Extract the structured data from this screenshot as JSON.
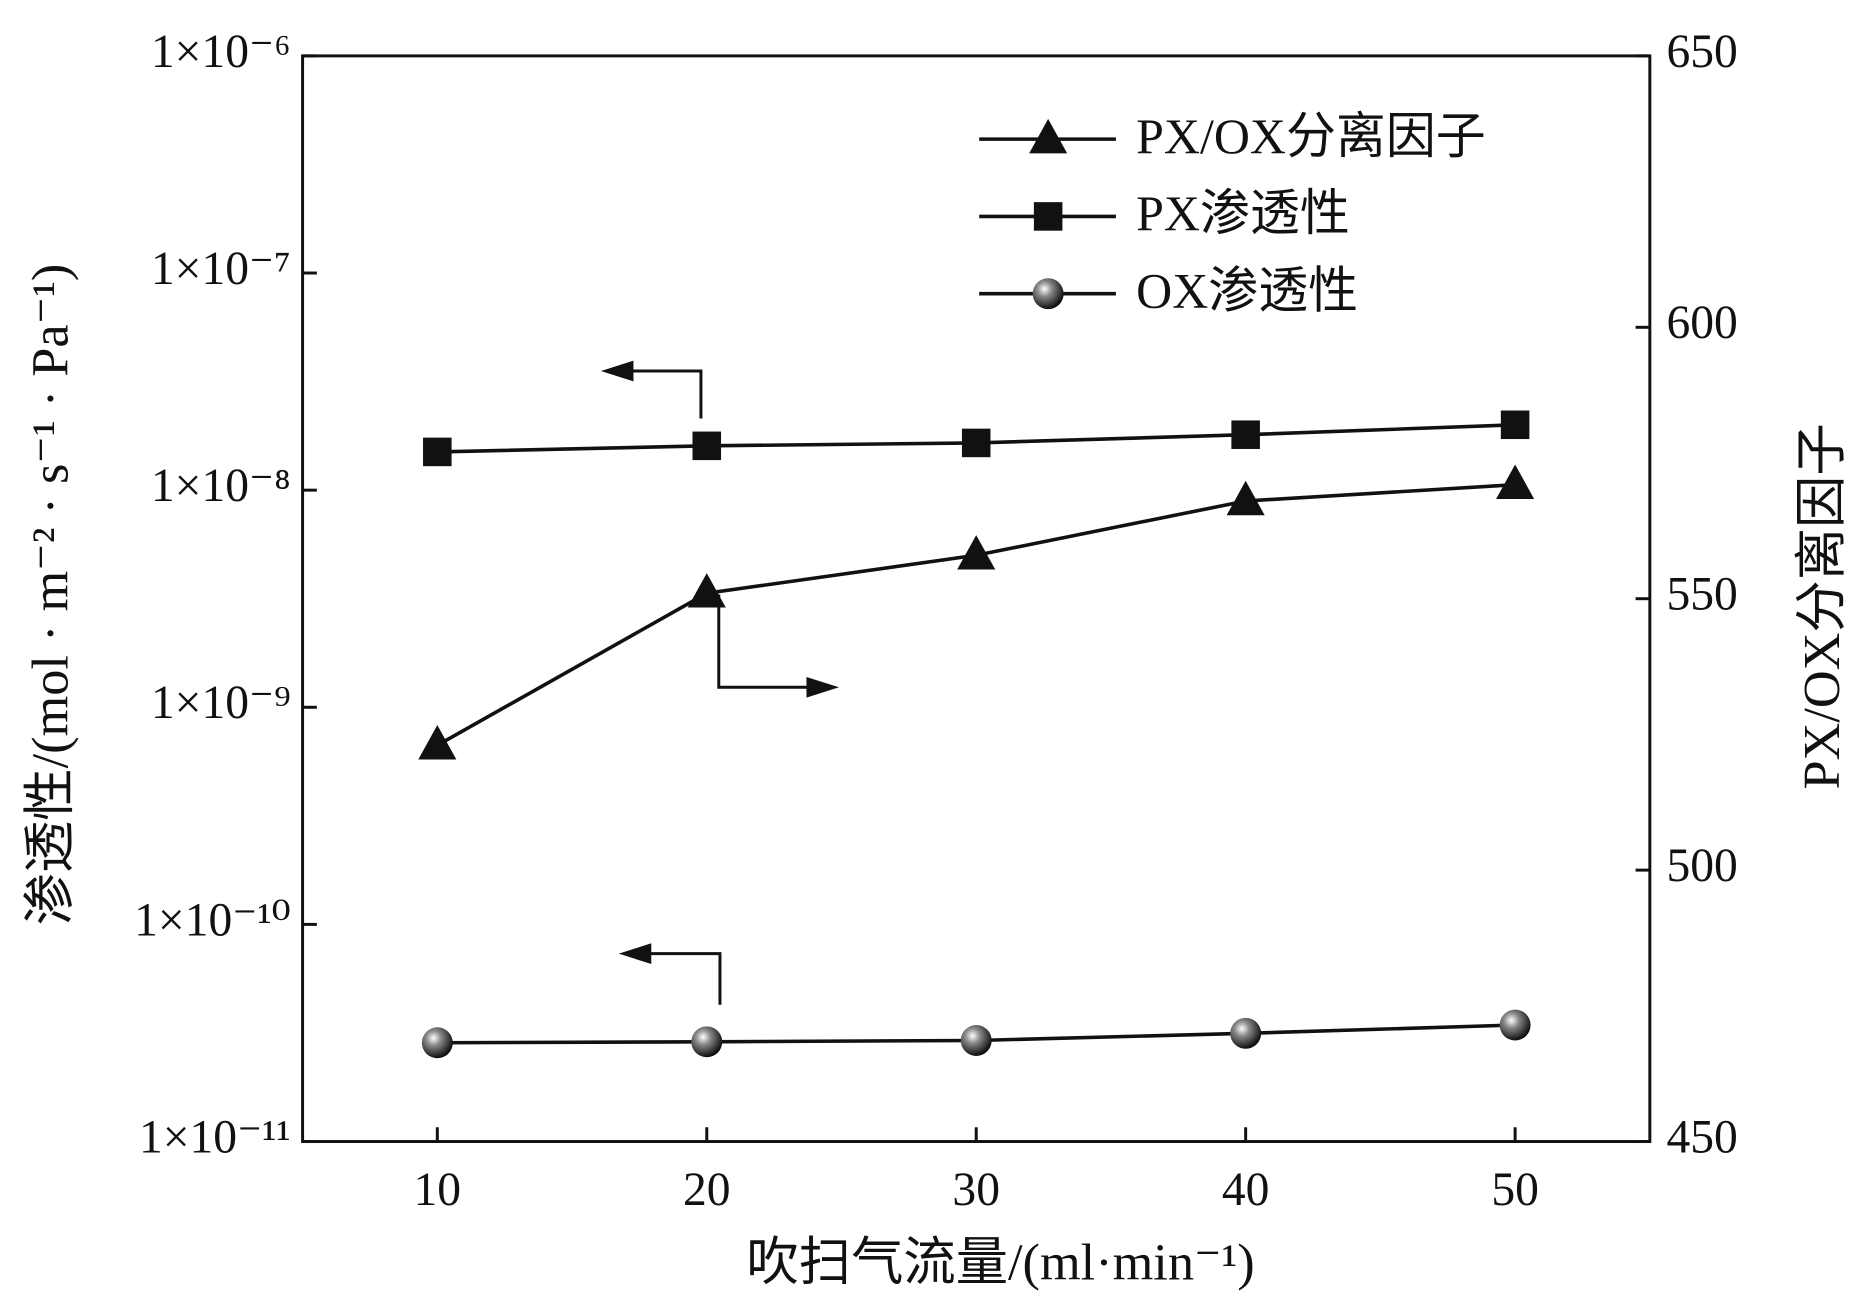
{
  "chart_data": {
    "type": "line",
    "x_label": "吹扫气流量/(ml·min⁻¹)",
    "y_label": "渗透性/(mol · m⁻² · s⁻¹ · Pa⁻¹)",
    "y2_label": "PX/OX分离因子",
    "x": [
      10,
      20,
      30,
      40,
      50
    ],
    "xlim": [
      5,
      55
    ],
    "xticks": [
      10,
      20,
      30,
      40,
      50
    ],
    "yscale": "log",
    "ylim": [
      1e-11,
      1e-06
    ],
    "yticks": [
      {
        "value": 1e-11,
        "label": "1×10⁻¹¹"
      },
      {
        "value": 1e-10,
        "label": "1×10⁻¹⁰"
      },
      {
        "value": 1e-09,
        "label": "1×10⁻⁹"
      },
      {
        "value": 1e-08,
        "label": "1×10⁻⁸"
      },
      {
        "value": 1e-07,
        "label": "1×10⁻⁷"
      },
      {
        "value": 1e-06,
        "label": "1×10⁻⁶"
      }
    ],
    "y2lim": [
      450,
      650
    ],
    "y2ticks": [
      450,
      500,
      550,
      600,
      650
    ],
    "legend": "upper right",
    "series": [
      {
        "name": "PX/OX分离因子",
        "color": "#111111",
        "marker": "triangle",
        "axis": "y2",
        "values": [
          523,
          551,
          558,
          568,
          571
        ]
      },
      {
        "name": "PX渗透性",
        "color": "#111111",
        "marker": "square",
        "values": [
          1.5e-08,
          1.6e-08,
          1.65e-08,
          1.8e-08,
          2e-08
        ]
      },
      {
        "name": "OX渗透性",
        "color": "#111111",
        "marker": "sphere",
        "values": [
          2.85e-11,
          2.88e-11,
          2.92e-11,
          3.15e-11,
          3.44e-11
        ]
      }
    ]
  }
}
